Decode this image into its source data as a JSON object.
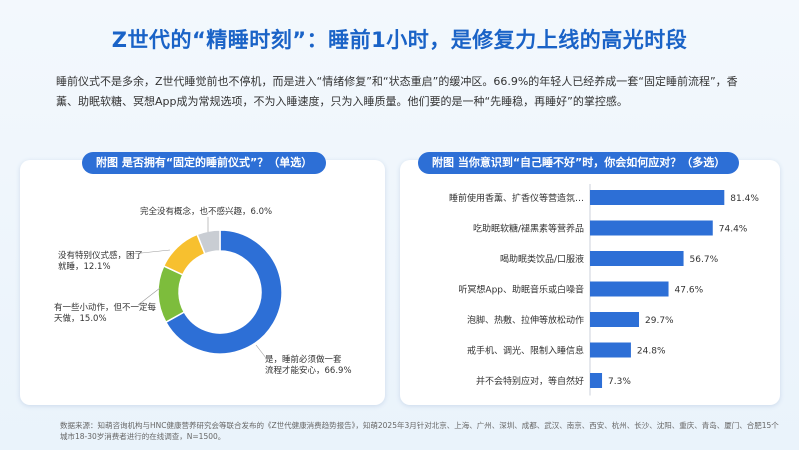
{
  "header": {
    "title": "Z世代的“精睡时刻”：睡前1小时，是修复力上线的高光时段"
  },
  "intro": {
    "text": "睡前仪式不是多余，Z世代睡觉前也不停机，而是进入“情绪修复”和“状态重启”的缓冲区。66.9%的年轻人已经养成一套“固定睡前流程”，香薰、助眠软糖、冥想App成为常规选项，不为入睡速度，只为入睡质量。他们要的是一种“先睡稳，再睡好”的掌控感。"
  },
  "colors": {
    "title": "#1a63c7",
    "pill": "#2d6fd6",
    "bar": "#2d6fd6",
    "pie_blue": "#2d6fd6",
    "pie_green": "#7dbd3c",
    "pie_yellow": "#f7c02f",
    "pie_gray": "#c9cdd3"
  },
  "chart_data": [
    {
      "type": "pie",
      "title": "附图 是否拥有“固定的睡前仪式”？（单选）",
      "slices": [
        {
          "label": "是，睡前必须做一套流程才能安心",
          "value": 66.9,
          "value_label": "66.9%",
          "color": "#2d6fd6"
        },
        {
          "label": "有一些小动作，但不一定每天做",
          "value": 15.0,
          "value_label": "15.0%",
          "color": "#7dbd3c"
        },
        {
          "label": "没有特别仪式感，困了就睡",
          "value": 12.1,
          "value_label": "12.1%",
          "color": "#f7c02f"
        },
        {
          "label": "完全没有概念，也不感兴趣",
          "value": 6.0,
          "value_label": "6.0%",
          "color": "#c9cdd3"
        }
      ]
    },
    {
      "type": "bar",
      "orientation": "horizontal",
      "title": "附图 当你意识到“自己睡不好”时，你会如何应对？（多选）",
      "categories": [
        "睡前使用香薰、扩香仪等营造氛…",
        "吃助眠软糖/褪黑素等营养品",
        "喝助眠类饮品/口服液",
        "听冥想App、助眠音乐或白噪音",
        "泡脚、热敷、拉伸等放松动作",
        "戒手机、调光、限制入睡信息",
        "并不会特别应对，等自然好"
      ],
      "values": [
        81.4,
        74.4,
        56.7,
        47.6,
        29.7,
        24.8,
        7.3
      ],
      "value_labels": [
        "81.4%",
        "74.4%",
        "56.7%",
        "47.6%",
        "29.7%",
        "24.8%",
        "7.3%"
      ],
      "xlim": [
        0,
        100
      ]
    }
  ],
  "footnote": {
    "text": "数据来源：知萌咨询机构与HNC健康营养研究会等联合发布的《Z世代健康消费趋势报告》，知萌2025年3月针对北京、上海、广州、深圳、成都、武汉、南京、西安、杭州、长沙、沈阳、重庆、青岛、厦门、合肥15个城市18-30岁消费者进行的在线调查，N=1500。"
  }
}
